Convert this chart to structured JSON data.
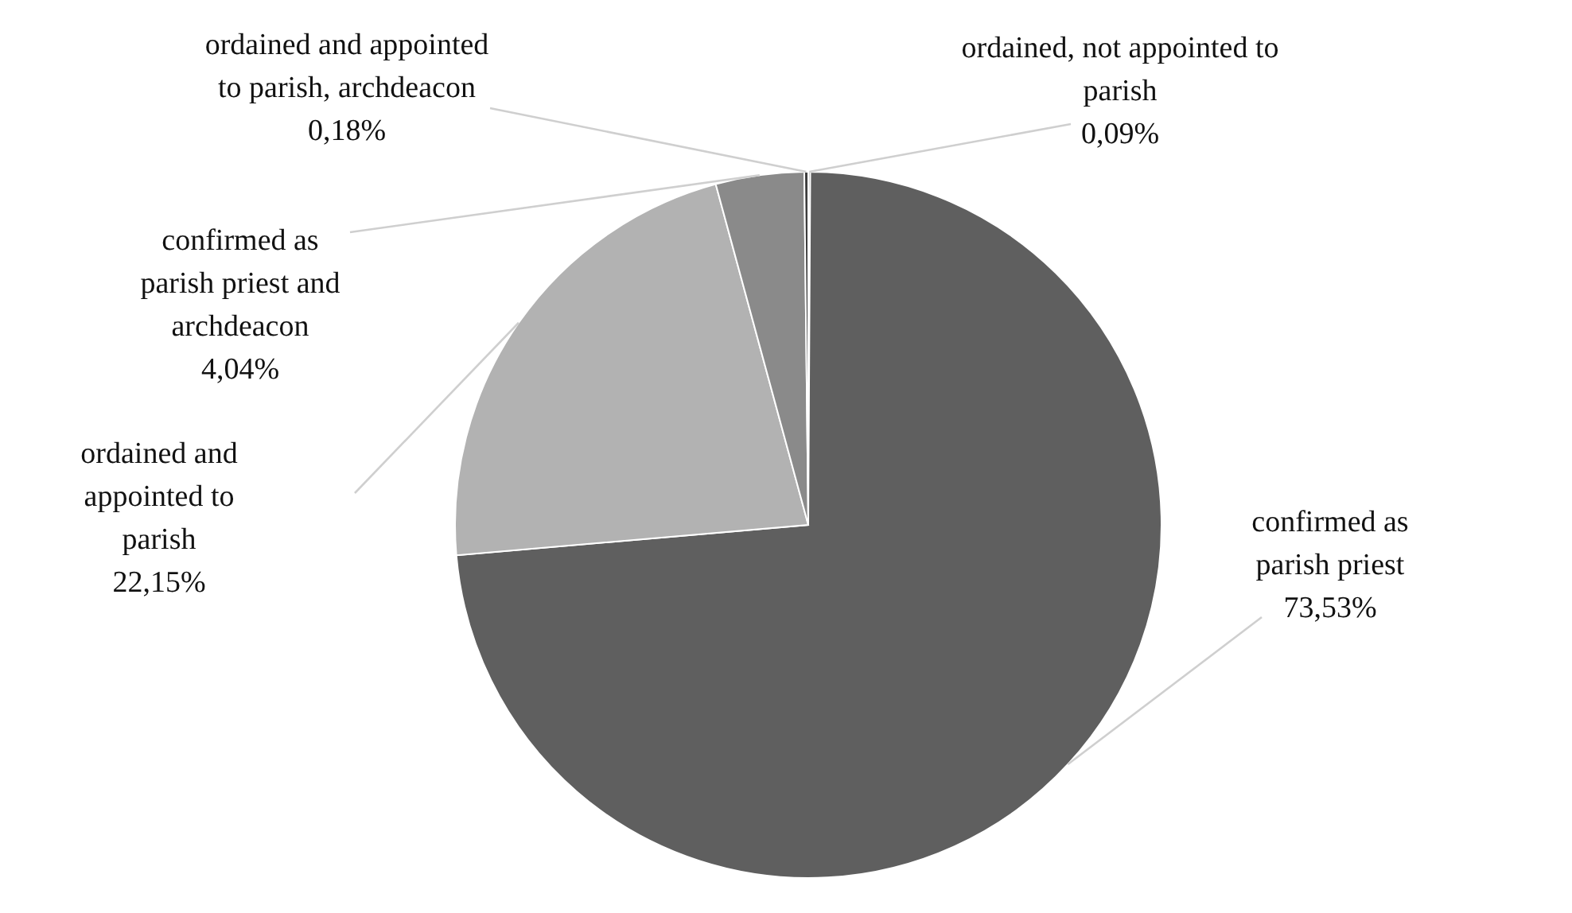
{
  "chart_data": {
    "type": "pie",
    "categories": [
      "ordained, not appointed to parish",
      "confirmed as parish priest",
      "ordained and appointed to parish",
      "confirmed as parish priest and archdeacon",
      "ordained and appointed to parish, archdeacon"
    ],
    "values": [
      0.09,
      73.53,
      22.15,
      4.04,
      0.18
    ],
    "value_labels": [
      "0,09%",
      "73,53%",
      "22,15%",
      "4,04%",
      "0,18%"
    ],
    "colors": [
      "#2e2e2e",
      "#5f5f5f",
      "#b2b2b2",
      "#8a8a8a",
      "#3c3c3c"
    ]
  }
}
